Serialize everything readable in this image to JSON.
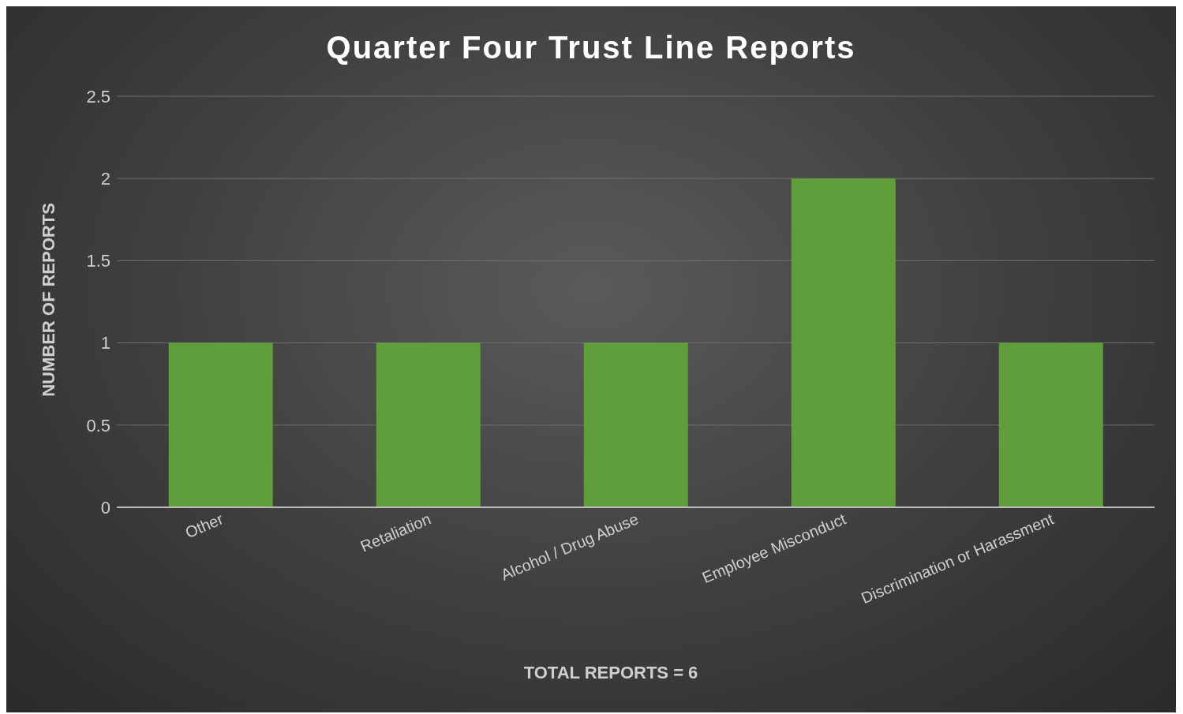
{
  "chart_data": {
    "type": "bar",
    "title": "Quarter Four Trust Line Reports",
    "xlabel": "TOTAL REPORTS = 6",
    "ylabel": "NUMBER OF REPORTS",
    "categories": [
      "Other",
      "Retaliation",
      "Alcohol / Drug Abuse",
      "Employee Misconduct",
      "Discrimination or Harassment"
    ],
    "values": [
      1,
      1,
      1,
      2,
      1
    ],
    "color": "#5f9e3a",
    "ylim": [
      0,
      2.5
    ],
    "yticks": [
      0,
      0.5,
      1,
      1.5,
      2,
      2.5
    ],
    "grid": "y",
    "legend": false
  }
}
